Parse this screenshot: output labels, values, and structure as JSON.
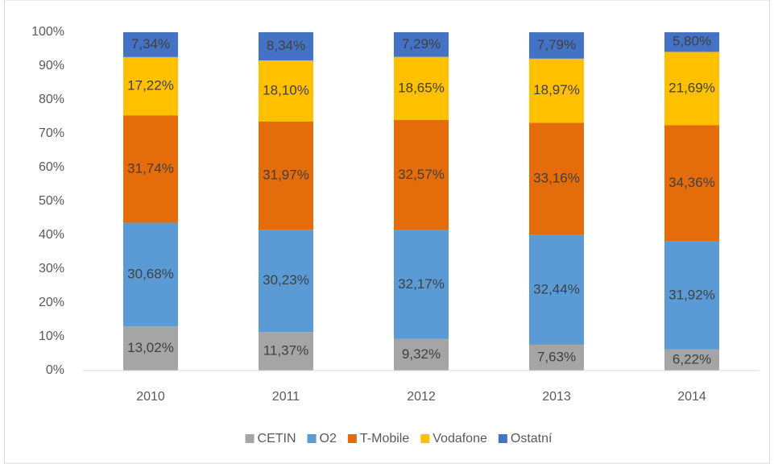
{
  "chart_data": {
    "type": "stacked_bar",
    "categories": [
      "2010",
      "2011",
      "2012",
      "2013",
      "2014"
    ],
    "series": [
      {
        "name": "CETIN",
        "color": "#a5a5a5",
        "values": [
          13.02,
          11.37,
          9.32,
          7.63,
          6.22
        ],
        "value_labels": [
          "13,02%",
          "11,37%",
          "9,32%",
          "7,63%",
          "6,22%"
        ]
      },
      {
        "name": "O2",
        "color": "#5b9bd5",
        "values": [
          30.68,
          30.23,
          32.17,
          32.44,
          31.92
        ],
        "value_labels": [
          "30,68%",
          "30,23%",
          "32,17%",
          "32,44%",
          "31,92%"
        ]
      },
      {
        "name": "T-Mobile",
        "color": "#e46c0a",
        "values": [
          31.74,
          31.97,
          32.57,
          33.16,
          34.36
        ],
        "value_labels": [
          "31,74%",
          "31,97%",
          "32,57%",
          "33,16%",
          "34,36%"
        ]
      },
      {
        "name": "Vodafone",
        "color": "#ffc000",
        "values": [
          17.22,
          18.1,
          18.65,
          18.97,
          21.69
        ],
        "value_labels": [
          "17,22%",
          "18,10%",
          "18,65%",
          "18,97%",
          "21,69%"
        ]
      },
      {
        "name": "Ostatní",
        "color": "#4472c4",
        "values": [
          7.34,
          8.34,
          7.29,
          7.79,
          5.8
        ],
        "value_labels": [
          "7,34%",
          "8,34%",
          "7,29%",
          "7,79%",
          "5,80%"
        ]
      }
    ],
    "ylim": [
      0,
      100
    ],
    "yticks": [
      {
        "value": 0,
        "label": "0%"
      },
      {
        "value": 10,
        "label": "10%"
      },
      {
        "value": 20,
        "label": "20%"
      },
      {
        "value": 30,
        "label": "30%"
      },
      {
        "value": 40,
        "label": "40%"
      },
      {
        "value": 50,
        "label": "50%"
      },
      {
        "value": 60,
        "label": "60%"
      },
      {
        "value": 70,
        "label": "70%"
      },
      {
        "value": 80,
        "label": "80%"
      },
      {
        "value": 90,
        "label": "90%"
      },
      {
        "value": 100,
        "label": "100%"
      }
    ],
    "grid": false,
    "legend": "bottom"
  }
}
